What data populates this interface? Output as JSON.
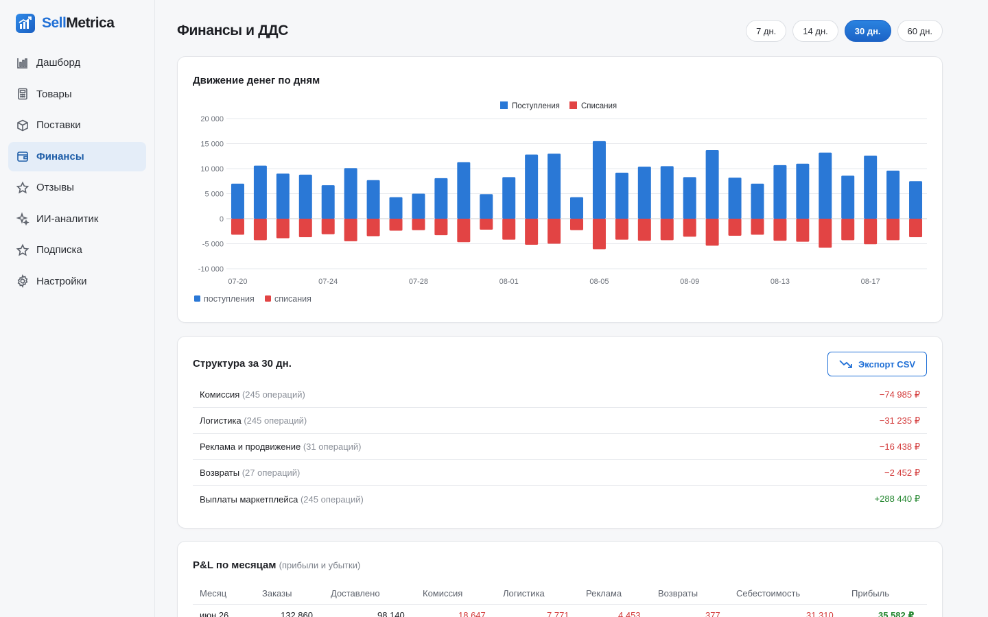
{
  "brand": {
    "part1": "Sell",
    "part2": "Metrica"
  },
  "nav": [
    {
      "label": "Дашборд",
      "icon": "bar-chart-icon",
      "active": false
    },
    {
      "label": "Товары",
      "icon": "calculator-icon",
      "active": false
    },
    {
      "label": "Поставки",
      "icon": "box-icon",
      "active": false
    },
    {
      "label": "Финансы",
      "icon": "wallet-icon",
      "active": true
    },
    {
      "label": "Отзывы",
      "icon": "star-icon",
      "active": false
    },
    {
      "label": "ИИ-аналитик",
      "icon": "sparkle-icon",
      "active": false
    },
    {
      "label": "Подписка",
      "icon": "star-icon",
      "active": false
    },
    {
      "label": "Настройки",
      "icon": "gear-icon",
      "active": false
    }
  ],
  "page_title": "Финансы и ДДС",
  "periods": [
    {
      "label": "7 дн.",
      "active": false
    },
    {
      "label": "14 дн.",
      "active": false
    },
    {
      "label": "30 дн.",
      "active": true
    },
    {
      "label": "60 дн.",
      "active": false
    }
  ],
  "chart_card_title": "Движение денег по дням",
  "chart_data": {
    "type": "bar",
    "stacked": true,
    "categories": [
      "07-20",
      "07-21",
      "07-22",
      "07-23",
      "07-24",
      "07-25",
      "07-26",
      "07-27",
      "07-28",
      "07-29",
      "07-30",
      "07-31",
      "08-01",
      "08-02",
      "08-03",
      "08-04",
      "08-05",
      "08-06",
      "08-07",
      "08-08",
      "08-09",
      "08-10",
      "08-11",
      "08-12",
      "08-13",
      "08-14",
      "08-15",
      "08-16",
      "08-17",
      "08-18",
      "08-19"
    ],
    "tick_labels": [
      "07-20",
      "07-24",
      "07-28",
      "08-01",
      "08-05",
      "08-09",
      "08-13",
      "08-17"
    ],
    "y_ticks": [
      "20 000",
      "15 000",
      "10 000",
      "5 000",
      "0",
      "-5 000",
      "-10 000"
    ],
    "ylim": [
      -10000,
      20000
    ],
    "series": [
      {
        "name": "Поступления",
        "color": "#2a78d6",
        "values": [
          7000,
          10600,
          9000,
          8800,
          6700,
          10100,
          7700,
          4300,
          5000,
          8100,
          11300,
          4900,
          8300,
          12800,
          13000,
          4300,
          15500,
          9200,
          10400,
          10500,
          8300,
          13700,
          8200,
          7000,
          10700,
          11000,
          13200,
          8600,
          12600,
          9600,
          7500
        ]
      },
      {
        "name": "Списания",
        "color": "#e24444",
        "values": [
          -3200,
          -4300,
          -3900,
          -3700,
          -3100,
          -4500,
          -3500,
          -2400,
          -2300,
          -3300,
          -4700,
          -2200,
          -4200,
          -5200,
          -5000,
          -2300,
          -6100,
          -4200,
          -4400,
          -4300,
          -3600,
          -5400,
          -3400,
          -3200,
          -4400,
          -4600,
          -5800,
          -4300,
          -5100,
          -4300,
          -3700
        ]
      }
    ],
    "top_legend": [
      "Поступления",
      "Списания"
    ],
    "bottom_legend": [
      "поступления",
      "списания"
    ],
    "grid": true,
    "legend_placement": "top-center"
  },
  "structure": {
    "title": "Структура за 30 дн.",
    "export_label": "Экспорт CSV",
    "rows": [
      {
        "name": "Комиссия",
        "count": "(245 операций)",
        "amount": "−74 985 ₽",
        "sign": "neg"
      },
      {
        "name": "Логистика",
        "count": "(245 операций)",
        "amount": "−31 235 ₽",
        "sign": "neg"
      },
      {
        "name": "Реклама и продвижение",
        "count": "(31 операций)",
        "amount": "−16 438 ₽",
        "sign": "neg"
      },
      {
        "name": "Возвраты",
        "count": "(27 операций)",
        "amount": "−2 452 ₽",
        "sign": "neg"
      },
      {
        "name": "Выплаты маркетплейса",
        "count": "(245 операций)",
        "amount": "+288 440 ₽",
        "sign": "pos"
      }
    ]
  },
  "pl": {
    "title": "P&L по месяцам",
    "subtitle": "(прибыли и убытки)",
    "columns": [
      "Месяц",
      "Заказы",
      "Доставлено",
      "Комиссия",
      "Логистика",
      "Реклама",
      "Возвраты",
      "Себестоимость",
      "Прибыль"
    ],
    "row": [
      "июн 26",
      "132 860",
      "98 140",
      "18 647",
      "7 771",
      "4 453",
      "377",
      "31 310",
      "35 582 ₽"
    ],
    "colors": {
      "neg": "#d33a3a",
      "pos": "#23862f"
    }
  }
}
